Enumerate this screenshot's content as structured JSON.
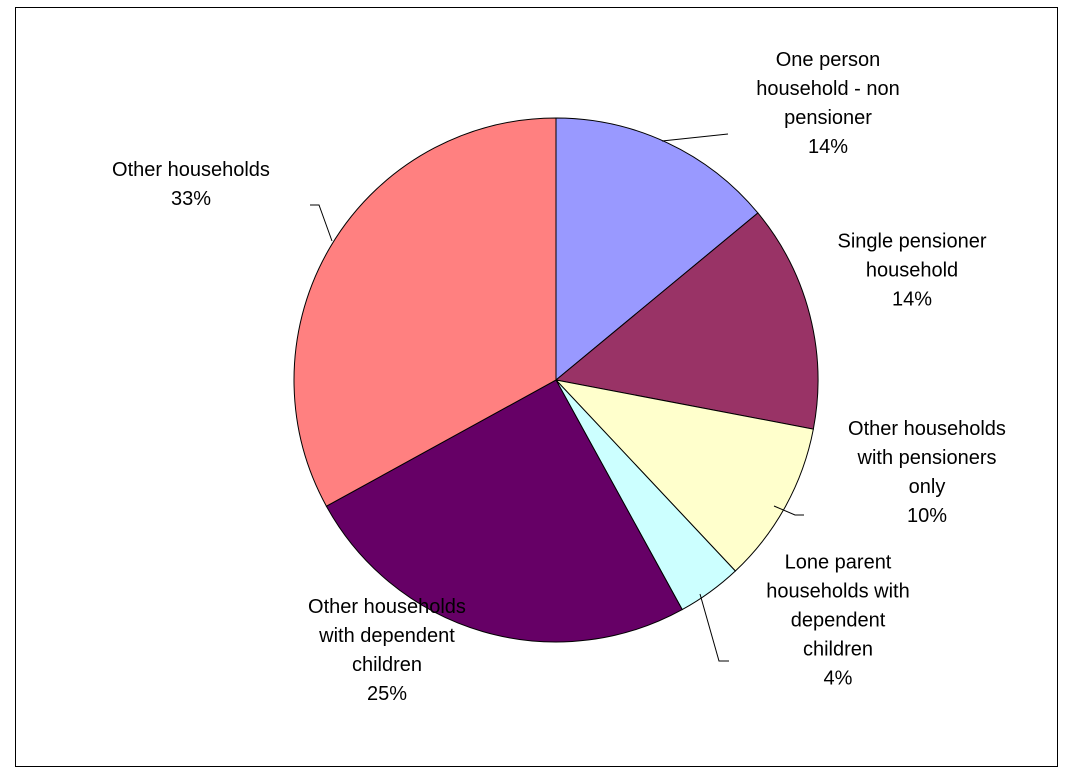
{
  "chart_data": {
    "type": "pie",
    "title": "",
    "slices": [
      {
        "label": "One person household - non pensioner",
        "label_lines": [
          "One person",
          "household - non",
          "pensioner"
        ],
        "value": 14,
        "value_label": "14%",
        "color": "#9999ff"
      },
      {
        "label": "Single pensioner household",
        "label_lines": [
          "Single pensioner",
          "household"
        ],
        "value": 14,
        "value_label": "14%",
        "color": "#993366"
      },
      {
        "label": "Other households with pensioners only",
        "label_lines": [
          "Other households",
          "with pensioners",
          "only"
        ],
        "value": 10,
        "value_label": "10%",
        "color": "#ffffcc"
      },
      {
        "label": "Lone parent households with dependent children",
        "label_lines": [
          "Lone parent",
          "households with",
          "dependent",
          "children"
        ],
        "value": 4,
        "value_label": "4%",
        "color": "#ccffff"
      },
      {
        "label": "Other households with dependent children",
        "label_lines": [
          "Other households",
          "with dependent",
          "children"
        ],
        "value": 25,
        "value_label": "25%",
        "color": "#660066"
      },
      {
        "label": "Other households",
        "label_lines": [
          "Other households"
        ],
        "value": 33,
        "value_label": "33%",
        "color": "#ff8080"
      }
    ],
    "start_angle_deg": 0,
    "direction": "clockwise",
    "legend": "none",
    "slice_border_color": "#000000"
  }
}
